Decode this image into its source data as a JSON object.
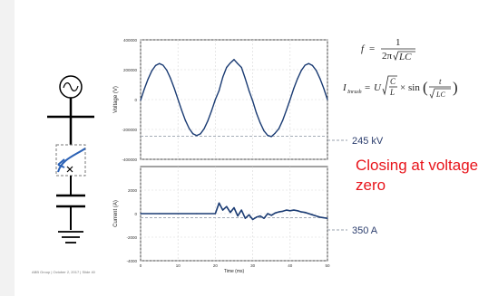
{
  "slide": {
    "closing_note": "Closing at voltage zero",
    "voltage_annotation": "245 kV",
    "current_annotation": "350 A",
    "footer": "ABB Group | October 2, 2017 | Slide 40",
    "formula_f": "f = 1 / (2π√(LC))",
    "formula_inrush": "I_inrush = U √(C/L) × sin(t / √(LC))"
  },
  "colors": {
    "trace": "#1a3b73",
    "guide": "#98a0ad",
    "accent": "#e8141b"
  },
  "chart_data": [
    {
      "type": "line",
      "ylabel": "Voltage (V)",
      "xlim": [
        0,
        50
      ],
      "ylim": [
        -400000,
        400000
      ],
      "yticks": [
        400000,
        200000,
        0,
        -200000,
        -400000
      ],
      "ytick_labels": [
        "400000",
        "200000",
        "0",
        "-200000",
        "-400000"
      ],
      "reference_level": -245000,
      "grid": true,
      "series": [
        {
          "x": [
            0,
            1,
            2,
            3,
            4,
            5,
            6,
            7,
            8,
            9,
            10,
            11,
            12,
            13,
            14,
            15,
            16,
            17,
            18,
            19,
            20,
            21,
            22,
            23,
            24,
            25,
            26,
            27,
            28,
            29,
            30,
            31,
            32,
            33,
            34,
            35,
            36,
            37,
            38,
            39,
            40,
            41,
            42,
            43,
            44,
            45,
            46,
            47,
            48,
            49,
            50
          ],
          "y": [
            -5000,
            70000,
            137000,
            193000,
            228000,
            241000,
            230000,
            197000,
            142000,
            76000,
            2000,
            -72000,
            -140000,
            -194000,
            -229000,
            -241000,
            -230000,
            -196000,
            -141000,
            -74000,
            0,
            60000,
            150000,
            215000,
            245000,
            268000,
            240000,
            215000,
            140000,
            60000,
            -10000,
            -90000,
            -155000,
            -210000,
            -240000,
            -248000,
            -225000,
            -195000,
            -140000,
            -72000,
            0,
            75000,
            140000,
            195000,
            230000,
            241000,
            228000,
            195000,
            140000,
            75000,
            0
          ]
        }
      ]
    },
    {
      "type": "line",
      "ylabel": "Current (A)",
      "xlabel": "Time (ms)",
      "xlim": [
        0,
        50
      ],
      "ylim": [
        -4000,
        4000
      ],
      "yticks": [
        2000,
        0,
        -2000,
        -4000
      ],
      "ytick_labels": [
        "2000",
        "0",
        "-2000",
        "-4000"
      ],
      "xticks": [
        0,
        10,
        20,
        30,
        40,
        50
      ],
      "xtick_labels": [
        "0",
        "10",
        "20",
        "30",
        "40",
        "50"
      ],
      "reference_level": -350,
      "grid": true,
      "series": [
        {
          "x": [
            0,
            5,
            10,
            15,
            20,
            21,
            22,
            23,
            24,
            25,
            26,
            27,
            28,
            29,
            30,
            31,
            32,
            33,
            34,
            35,
            36,
            37,
            38,
            39,
            40,
            41,
            42,
            43,
            44,
            45,
            46,
            47,
            48,
            49,
            50
          ],
          "y": [
            0,
            0,
            0,
            0,
            0,
            900,
            300,
            600,
            100,
            500,
            -200,
            300,
            -400,
            -100,
            -500,
            -300,
            -200,
            -400,
            0,
            -150,
            50,
            150,
            200,
            300,
            250,
            300,
            250,
            150,
            100,
            0,
            -100,
            -200,
            -300,
            -350,
            -400
          ]
        }
      ]
    }
  ]
}
